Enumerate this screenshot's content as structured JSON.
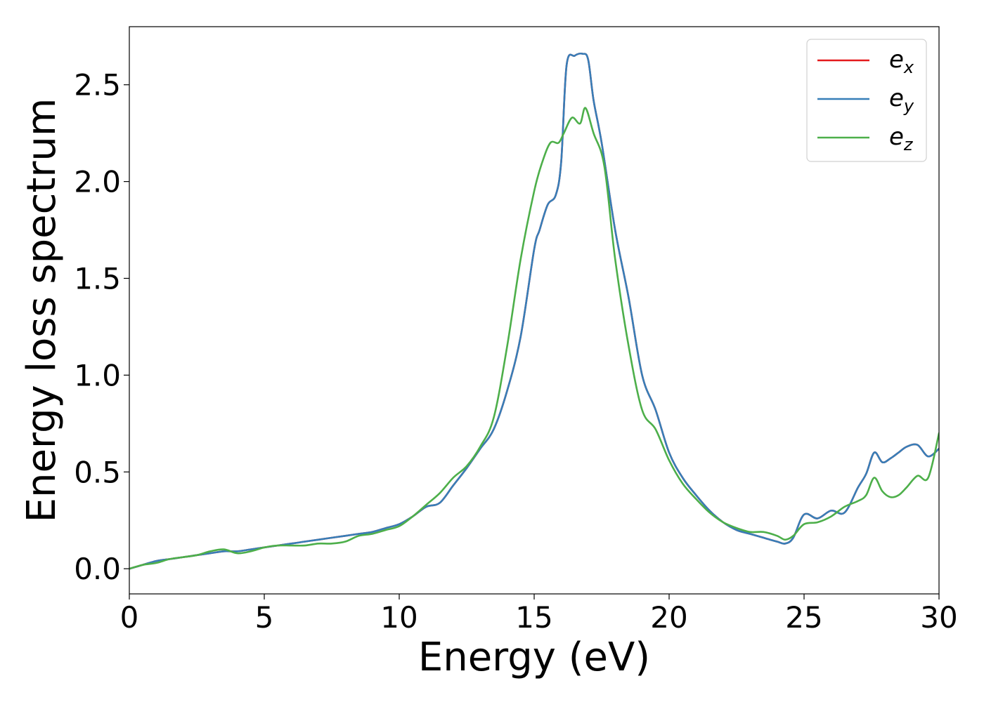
{
  "chart_data": {
    "type": "line",
    "title": "",
    "xlabel": "Energy (eV)",
    "ylabel": "Energy loss spectrum",
    "xlim": [
      0,
      30
    ],
    "ylim": [
      -0.13,
      2.8
    ],
    "xticks": [
      0,
      5,
      10,
      15,
      20,
      25,
      30
    ],
    "xtick_labels": [
      "0",
      "5",
      "10",
      "15",
      "20",
      "25",
      "30"
    ],
    "yticks": [
      0.0,
      0.5,
      1.0,
      1.5,
      2.0,
      2.5
    ],
    "ytick_labels": [
      "0.0",
      "0.5",
      "1.0",
      "1.5",
      "2.0",
      "2.5"
    ],
    "grid": false,
    "legend_position": "top-right",
    "series": [
      {
        "name": "e",
        "subscript": "x",
        "color": "#e41a1c",
        "x": [
          0,
          0.5,
          1,
          1.5,
          2,
          2.5,
          3,
          3.5,
          4,
          4.5,
          5,
          5.5,
          6,
          6.5,
          7,
          7.5,
          8,
          8.5,
          9,
          9.5,
          10,
          10.5,
          11,
          11.5,
          12,
          12.5,
          13,
          13.5,
          14,
          14.5,
          15,
          15.2,
          15.5,
          15.8,
          16,
          16.2,
          16.5,
          16.8,
          17,
          17.2,
          17.5,
          18,
          18.5,
          19,
          19.5,
          20,
          20.5,
          21,
          21.5,
          22,
          22.5,
          23,
          23.5,
          24,
          24.3,
          24.6,
          25,
          25.5,
          26,
          26.5,
          27,
          27.3,
          27.6,
          27.9,
          28.2,
          28.5,
          28.8,
          29.2,
          29.6,
          30
        ],
        "y": [
          0.0,
          0.02,
          0.04,
          0.05,
          0.06,
          0.07,
          0.08,
          0.09,
          0.09,
          0.1,
          0.11,
          0.12,
          0.13,
          0.14,
          0.15,
          0.16,
          0.17,
          0.18,
          0.19,
          0.21,
          0.23,
          0.27,
          0.32,
          0.34,
          0.43,
          0.52,
          0.62,
          0.72,
          0.92,
          1.2,
          1.65,
          1.75,
          1.88,
          1.93,
          2.1,
          2.6,
          2.65,
          2.66,
          2.63,
          2.42,
          2.2,
          1.75,
          1.4,
          1.0,
          0.82,
          0.6,
          0.47,
          0.38,
          0.3,
          0.24,
          0.2,
          0.18,
          0.16,
          0.14,
          0.13,
          0.16,
          0.28,
          0.26,
          0.3,
          0.29,
          0.42,
          0.49,
          0.6,
          0.55,
          0.57,
          0.6,
          0.63,
          0.64,
          0.58,
          0.62
        ]
      },
      {
        "name": "e",
        "subscript": "y",
        "color": "#377eb8",
        "x": [
          0,
          0.5,
          1,
          1.5,
          2,
          2.5,
          3,
          3.5,
          4,
          4.5,
          5,
          5.5,
          6,
          6.5,
          7,
          7.5,
          8,
          8.5,
          9,
          9.5,
          10,
          10.5,
          11,
          11.5,
          12,
          12.5,
          13,
          13.5,
          14,
          14.5,
          15,
          15.2,
          15.5,
          15.8,
          16,
          16.2,
          16.5,
          16.8,
          17,
          17.2,
          17.5,
          18,
          18.5,
          19,
          19.5,
          20,
          20.5,
          21,
          21.5,
          22,
          22.5,
          23,
          23.5,
          24,
          24.3,
          24.6,
          25,
          25.5,
          26,
          26.5,
          27,
          27.3,
          27.6,
          27.9,
          28.2,
          28.5,
          28.8,
          29.2,
          29.6,
          30
        ],
        "y": [
          0.0,
          0.02,
          0.04,
          0.05,
          0.06,
          0.07,
          0.08,
          0.09,
          0.09,
          0.1,
          0.11,
          0.12,
          0.13,
          0.14,
          0.15,
          0.16,
          0.17,
          0.18,
          0.19,
          0.21,
          0.23,
          0.27,
          0.32,
          0.34,
          0.43,
          0.52,
          0.62,
          0.72,
          0.92,
          1.2,
          1.65,
          1.75,
          1.88,
          1.93,
          2.1,
          2.6,
          2.65,
          2.66,
          2.63,
          2.42,
          2.2,
          1.75,
          1.4,
          1.0,
          0.82,
          0.6,
          0.47,
          0.38,
          0.3,
          0.24,
          0.2,
          0.18,
          0.16,
          0.14,
          0.13,
          0.16,
          0.28,
          0.26,
          0.3,
          0.29,
          0.42,
          0.49,
          0.6,
          0.55,
          0.57,
          0.6,
          0.63,
          0.64,
          0.58,
          0.62
        ]
      },
      {
        "name": "e",
        "subscript": "z",
        "color": "#4daf4a",
        "x": [
          0,
          0.5,
          1,
          1.5,
          2,
          2.5,
          3,
          3.5,
          4,
          4.5,
          5,
          5.5,
          6,
          6.5,
          7,
          7.5,
          8,
          8.5,
          9,
          9.5,
          10,
          10.5,
          11,
          11.5,
          12,
          12.5,
          13,
          13.5,
          14,
          14.5,
          15,
          15.3,
          15.6,
          15.9,
          16.1,
          16.4,
          16.7,
          16.9,
          17.2,
          17.6,
          18,
          18.5,
          19,
          19.5,
          20,
          20.5,
          21,
          21.5,
          22,
          22.5,
          23,
          23.5,
          24,
          24.3,
          24.6,
          25,
          25.5,
          26,
          26.5,
          27,
          27.3,
          27.6,
          27.9,
          28.2,
          28.5,
          28.8,
          29.2,
          29.6,
          30
        ],
        "y": [
          0.0,
          0.02,
          0.03,
          0.05,
          0.06,
          0.07,
          0.09,
          0.1,
          0.08,
          0.09,
          0.11,
          0.12,
          0.12,
          0.12,
          0.13,
          0.13,
          0.14,
          0.17,
          0.18,
          0.2,
          0.22,
          0.27,
          0.33,
          0.39,
          0.47,
          0.53,
          0.63,
          0.78,
          1.15,
          1.6,
          1.95,
          2.1,
          2.2,
          2.2,
          2.25,
          2.33,
          2.3,
          2.38,
          2.25,
          2.08,
          1.6,
          1.15,
          0.82,
          0.72,
          0.56,
          0.44,
          0.36,
          0.29,
          0.24,
          0.21,
          0.19,
          0.19,
          0.17,
          0.15,
          0.17,
          0.23,
          0.24,
          0.27,
          0.32,
          0.35,
          0.38,
          0.47,
          0.4,
          0.37,
          0.38,
          0.42,
          0.48,
          0.47,
          0.7
        ]
      }
    ]
  }
}
